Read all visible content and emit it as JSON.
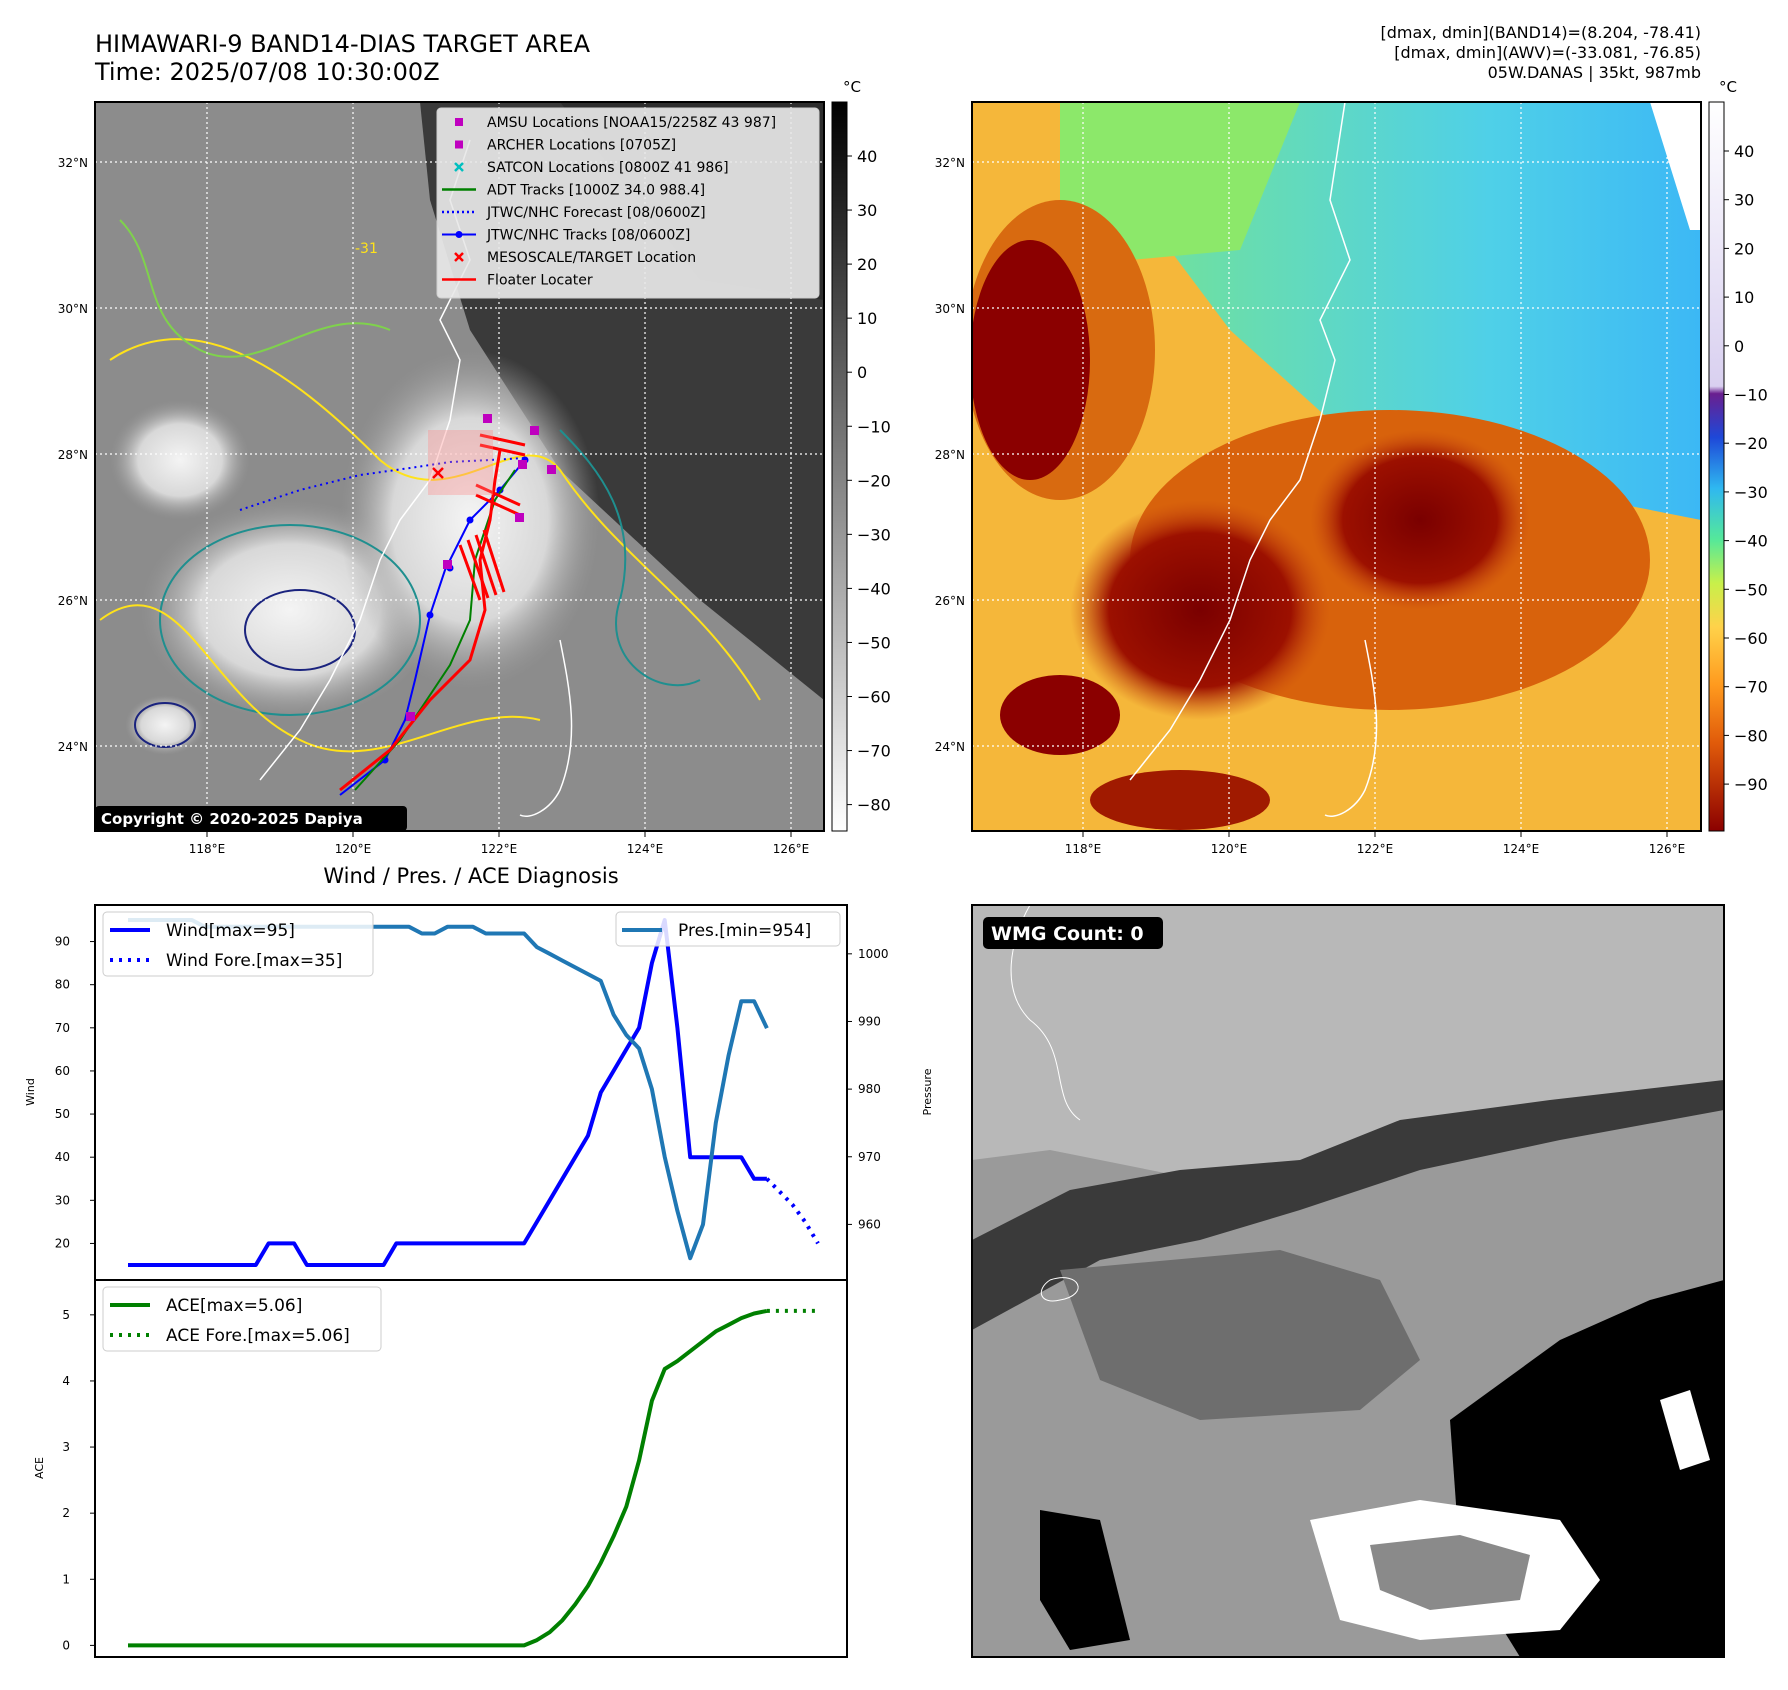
{
  "header": {
    "title_line1": "HIMAWARI-9 BAND14-DIAS TARGET AREA",
    "title_line2": "Time: 2025/07/08 10:30:00Z",
    "stats_line1": "[dmax, dmin](BAND14)=(8.204, -78.41)",
    "stats_line2": "[dmax, dmin](AWV)=(-33.081, -76.85)",
    "stats_line3": "05W.DANAS | 35kt, 987mb"
  },
  "copyright": "Copyright © 2020-2025 Dapiya",
  "map": {
    "lat_labels": [
      "32°N",
      "30°N",
      "28°N",
      "26°N",
      "24°N"
    ],
    "lon_labels": [
      "118°E",
      "120°E",
      "122°E",
      "124°E",
      "126°E"
    ],
    "legend": [
      {
        "label": "AMSU Locations [NOAA15/2258Z 43 987]",
        "color": "#bf00bf",
        "marker": "square"
      },
      {
        "label": "ARCHER Locations [0705Z]",
        "color": "#bf00bf",
        "marker": "square"
      },
      {
        "label": "SATCON Locations [0800Z 41 986]",
        "color": "#00bfbf",
        "marker": "x"
      },
      {
        "label": "ADT Tracks [1000Z 34.0 988.4]",
        "color": "#008000",
        "marker": "line"
      },
      {
        "label": "JTWC/NHC Forecast [08/0600Z]",
        "color": "#0000ff",
        "marker": "dotted"
      },
      {
        "label": "JTWC/NHC Tracks [08/0600Z]",
        "color": "#0000ff",
        "marker": "line-dot"
      },
      {
        "label": "MESOSCALE/TARGET Location",
        "color": "#ff0000",
        "marker": "x"
      },
      {
        "label": "Floater Locater",
        "color": "#ff0000",
        "marker": "line"
      }
    ],
    "contour_label": "-31"
  },
  "colorbar_gray": {
    "unit": "°C",
    "ticks": [
      "40",
      "30",
      "20",
      "10",
      "0",
      "−10",
      "−20",
      "−30",
      "−40",
      "−50",
      "−60",
      "−70",
      "−80"
    ]
  },
  "colorbar_color": {
    "unit": "°C",
    "ticks": [
      "40",
      "30",
      "20",
      "10",
      "0",
      "−10",
      "−20",
      "−30",
      "−40",
      "−50",
      "−60",
      "−70",
      "−80",
      "−90"
    ]
  },
  "wmg_label": "WMG Count: 0",
  "chart_data": [
    {
      "type": "line",
      "title": "Wind / Pres. / ACE Diagnosis",
      "ylabel": "Wind",
      "ylabel_right": "Pressure",
      "ylim": [
        15,
        95
      ],
      "ylim_right": [
        954,
        1005
      ],
      "yticks": [
        20,
        30,
        40,
        50,
        60,
        70,
        80,
        90
      ],
      "yticks_right": [
        960,
        970,
        980,
        990,
        1000
      ],
      "series": [
        {
          "name": "Wind[max=95]",
          "color": "#0000ff",
          "style": "solid",
          "x": [
            0,
            1,
            2,
            3,
            4,
            5,
            6,
            7,
            8,
            9,
            10,
            11,
            12,
            13,
            14,
            15,
            16,
            17,
            18,
            19,
            20,
            21,
            22,
            23,
            24,
            25,
            26,
            27,
            28,
            29,
            30,
            31,
            32,
            33,
            34,
            35,
            36,
            37,
            38,
            39,
            40,
            41,
            42,
            43,
            44,
            45,
            46,
            47,
            48,
            49,
            50
          ],
          "y": [
            15,
            15,
            15,
            15,
            15,
            15,
            15,
            15,
            15,
            15,
            15,
            20,
            20,
            20,
            15,
            15,
            15,
            15,
            15,
            15,
            15,
            20,
            20,
            20,
            20,
            20,
            20,
            20,
            20,
            20,
            20,
            20,
            25,
            30,
            35,
            40,
            45,
            55,
            60,
            65,
            70,
            85,
            95,
            70,
            40,
            40,
            40,
            40,
            40,
            35,
            35
          ]
        },
        {
          "name": "Wind Fore.[max=35]",
          "color": "#0000ff",
          "style": "dotted",
          "x": [
            50,
            51,
            52,
            53,
            54
          ],
          "y": [
            35,
            32,
            29,
            25,
            20
          ]
        },
        {
          "name": "Pres.[min=954]",
          "color": "#1f77b4",
          "style": "solid",
          "axis": "right",
          "x": [
            0,
            1,
            2,
            3,
            4,
            5,
            6,
            7,
            8,
            9,
            10,
            11,
            12,
            13,
            14,
            15,
            16,
            17,
            18,
            19,
            20,
            21,
            22,
            23,
            24,
            25,
            26,
            27,
            28,
            29,
            30,
            31,
            32,
            33,
            34,
            35,
            36,
            37,
            38,
            39,
            40,
            41,
            42,
            43,
            44,
            45,
            46,
            47,
            48,
            49,
            50
          ],
          "y": [
            1005,
            1005,
            1005,
            1005,
            1005,
            1005,
            1004,
            1004,
            1004,
            1004,
            1004,
            1004,
            1004,
            1004,
            1004,
            1004,
            1004,
            1004,
            1004,
            1004,
            1004,
            1004,
            1004,
            1003,
            1003,
            1004,
            1004,
            1004,
            1003,
            1003,
            1003,
            1003,
            1001,
            1000,
            999,
            998,
            997,
            996,
            991,
            988,
            986,
            980,
            970,
            962,
            955,
            960,
            975,
            985,
            993,
            993,
            989
          ]
        },
        {
          "name": "",
          "color": "#1f77b4",
          "style": "solid",
          "axis": "right",
          "x": [],
          "y": []
        }
      ]
    },
    {
      "type": "line",
      "ylabel": "ACE",
      "ylim": [
        -0.1,
        5.3
      ],
      "yticks": [
        0,
        1,
        2,
        3,
        4,
        5
      ],
      "series": [
        {
          "name": "ACE[max=5.06]",
          "color": "#008000",
          "style": "solid",
          "x": [
            0,
            5,
            10,
            15,
            20,
            25,
            28,
            29,
            30,
            31,
            32,
            33,
            34,
            35,
            36,
            37,
            38,
            39,
            40,
            41,
            42,
            43,
            44,
            45,
            46,
            47,
            48,
            49,
            50
          ],
          "y": [
            0,
            0,
            0,
            0,
            0,
            0,
            0,
            0,
            0,
            0,
            0.08,
            0.2,
            0.38,
            0.62,
            0.9,
            1.25,
            1.65,
            2.1,
            2.8,
            3.7,
            4.18,
            4.3,
            4.45,
            4.6,
            4.75,
            4.85,
            4.95,
            5.02,
            5.06
          ]
        },
        {
          "name": "ACE Fore.[max=5.06]",
          "color": "#008000",
          "style": "dotted",
          "x": [
            50,
            51,
            52,
            53,
            54
          ],
          "y": [
            5.06,
            5.06,
            5.06,
            5.06,
            5.06
          ]
        }
      ]
    }
  ]
}
